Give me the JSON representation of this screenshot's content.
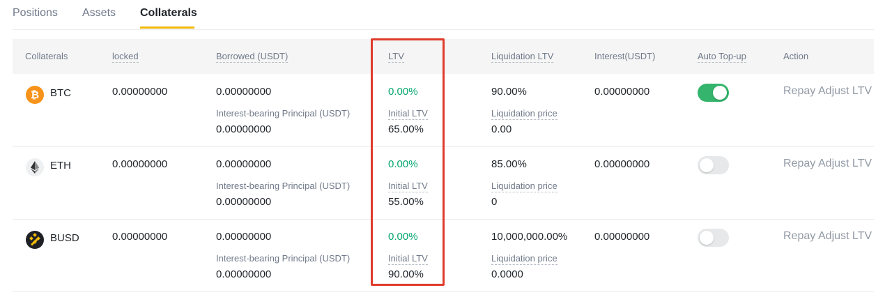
{
  "tabs": [
    {
      "label": "Positions"
    },
    {
      "label": "Assets"
    },
    {
      "label": "Collaterals"
    }
  ],
  "table": {
    "headers": {
      "collaterals": "Collaterals",
      "locked": "locked",
      "borrowed": "Borrowed (USDT)",
      "ltv": "LTV",
      "liq_ltv": "Liquidation LTV",
      "interest": "Interest(USDT)",
      "auto_topup": "Auto Top-up",
      "action": "Action"
    },
    "rows": [
      {
        "coin": "BTC",
        "locked": "0.00000000",
        "borrowed": "0.00000000",
        "principal_label": "Interest-bearing Principal (USDT)",
        "principal": "0.00000000",
        "ltv": "0.00%",
        "initial_ltv_label": "Initial LTV",
        "initial_ltv": "65.00%",
        "liq_ltv": "90.00%",
        "liq_price_label": "Liquidation price",
        "liq_price": "0.00",
        "interest": "0.00000000",
        "auto_topup": true,
        "repay": "Repay",
        "adjust": "Adjust LTV"
      },
      {
        "coin": "ETH",
        "locked": "0.00000000",
        "borrowed": "0.00000000",
        "principal_label": "Interest-bearing Principal (USDT)",
        "principal": "0.00000000",
        "ltv": "0.00%",
        "initial_ltv_label": "Initial LTV",
        "initial_ltv": "55.00%",
        "liq_ltv": "85.00%",
        "liq_price_label": "Liquidation price",
        "liq_price": "0",
        "interest": "0.00000000",
        "auto_topup": false,
        "repay": "Repay",
        "adjust": "Adjust LTV"
      },
      {
        "coin": "BUSD",
        "locked": "0.00000000",
        "borrowed": "0.00000000",
        "principal_label": "Interest-bearing Principal (USDT)",
        "principal": "0.00000000",
        "ltv": "0.00%",
        "initial_ltv_label": "Initial LTV",
        "initial_ltv": "90.00%",
        "liq_ltv": "10,000,000.00%",
        "liq_price_label": "Liquidation price",
        "liq_price": "0.0000",
        "interest": "0.00000000",
        "auto_topup": false,
        "repay": "Repay",
        "adjust": "Adjust LTV"
      }
    ]
  },
  "colors": {
    "accent": "#f0b90b",
    "positive": "#03a66d",
    "toggle_on": "#34b46c",
    "highlight": "#e03b2c"
  }
}
